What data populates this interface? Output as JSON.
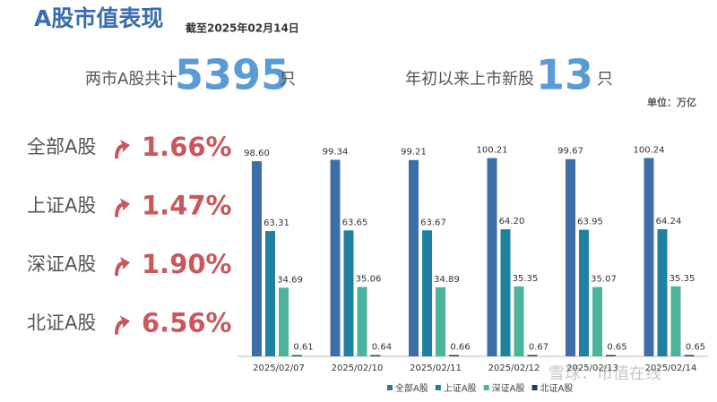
{
  "header": {
    "title": "A股市值表现",
    "date": "截至2025年02月14日",
    "unit": "单位：万亿"
  },
  "summary": [
    {
      "label": "两市A股共计",
      "number": "5395",
      "suffix": "只"
    },
    {
      "label": "年初以来上市新股",
      "number": "13",
      "suffix": "只"
    }
  ],
  "stats": [
    {
      "name": "全部A股",
      "change": "1.66%"
    },
    {
      "name": "上证A股",
      "change": "1.47%"
    },
    {
      "name": "深证A股",
      "change": "1.90%"
    },
    {
      "name": "北证A股",
      "change": "6.56%"
    }
  ],
  "watermark": "雪球：市值在线",
  "chart_data": {
    "type": "bar",
    "categories": [
      "2025/02/07",
      "2025/02/10",
      "2025/02/11",
      "2025/02/12",
      "2025/02/13",
      "2025/02/14"
    ],
    "ylim": [
      0,
      100
    ],
    "series": [
      {
        "name": "全部A股",
        "color": "#3d6ea8",
        "values": [
          98.6,
          99.34,
          99.21,
          100.21,
          99.67,
          100.24
        ],
        "value_labels": [
          "98.60",
          "99.34",
          "99.21",
          "100.21",
          "99.67",
          "100.24"
        ]
      },
      {
        "name": "上证A股",
        "color": "#1f80a0",
        "values": [
          63.31,
          63.65,
          63.67,
          64.2,
          63.95,
          64.24
        ],
        "value_labels": [
          "63.31",
          "63.65",
          "63.67",
          "64.20",
          "63.95",
          "64.24"
        ]
      },
      {
        "name": "深证A股",
        "color": "#4db39b",
        "values": [
          34.69,
          35.06,
          34.89,
          35.35,
          35.07,
          35.35
        ],
        "value_labels": [
          "34.69",
          "35.06",
          "34.89",
          "35.35",
          "35.07",
          "35.35"
        ]
      },
      {
        "name": "北证A股",
        "color": "#1e3a6d",
        "values": [
          0.61,
          0.64,
          0.66,
          0.67,
          0.65,
          0.65
        ],
        "value_labels": [
          "0.61",
          "0.64",
          "0.66",
          "0.67",
          "0.65",
          "0.65"
        ]
      }
    ]
  }
}
